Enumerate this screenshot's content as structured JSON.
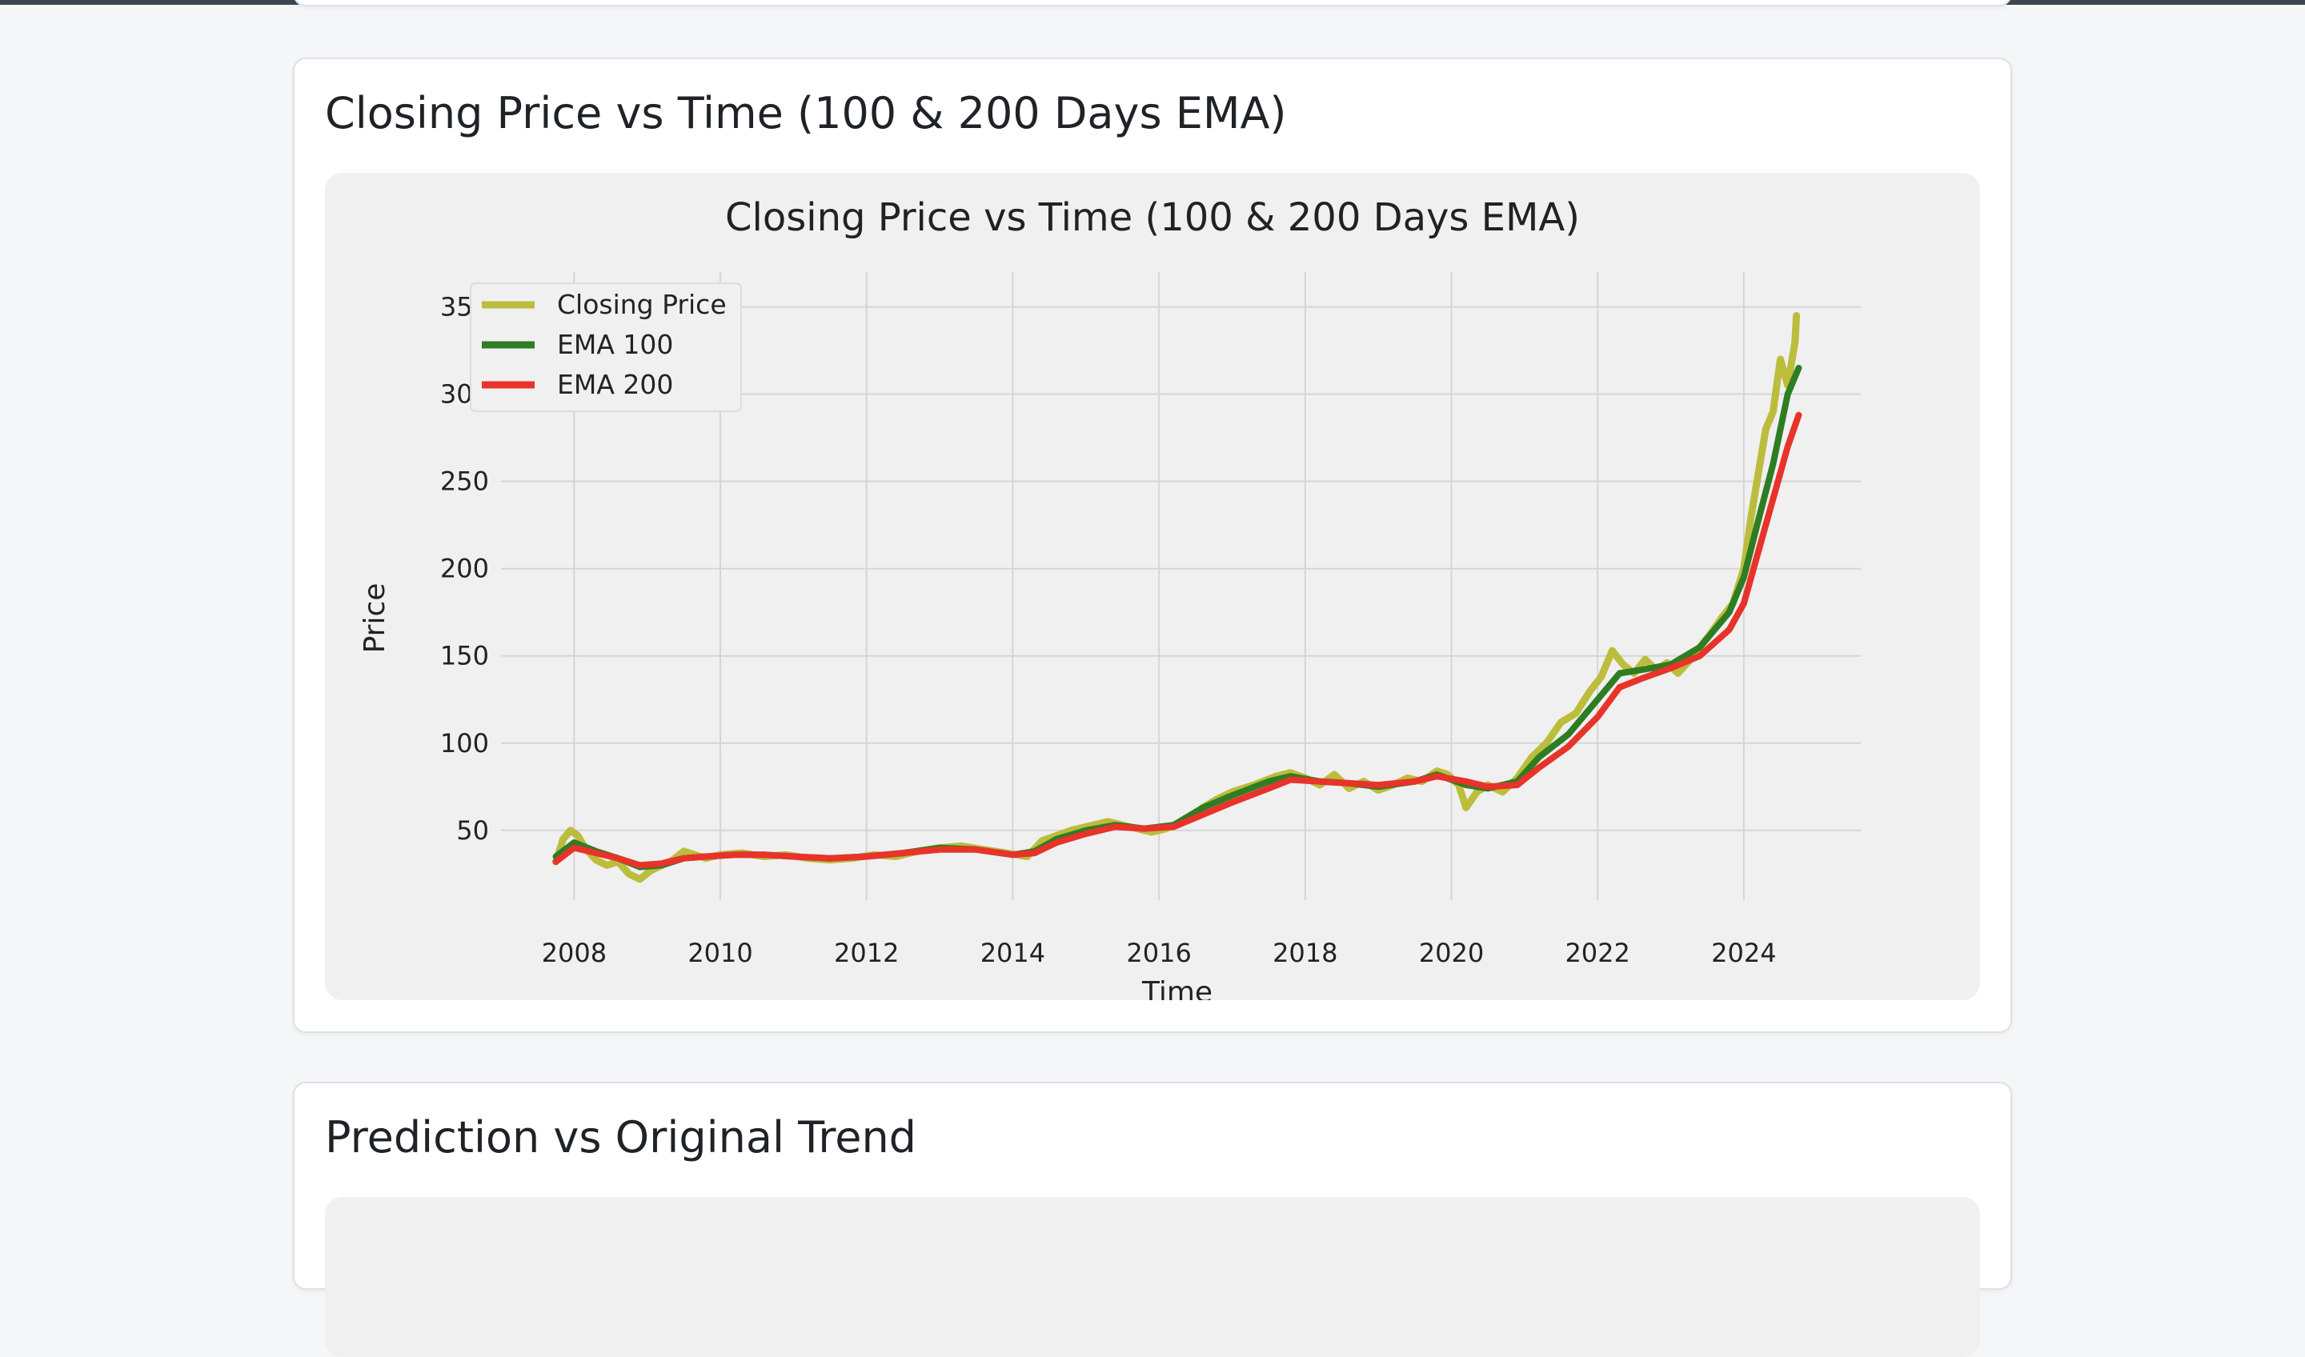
{
  "colors": {
    "page_bg": "#f4f6f8",
    "card_bg": "#ffffff",
    "plot_bg": "#f0f0f0",
    "grid": "#d5d5d5",
    "closing": "#bcbd3c",
    "ema100": "#2e7d24",
    "ema200": "#e8332a"
  },
  "sections": {
    "ema_chart": {
      "title": "Closing Price vs Time (100 & 200 Days EMA)"
    },
    "prediction_chart": {
      "title": "Prediction vs Original Trend"
    }
  },
  "chart_data": {
    "type": "line",
    "title": "Closing Price vs Time (100 & 200 Days EMA)",
    "xlabel": "Time",
    "ylabel": "Price",
    "xlim": [
      2007.0,
      2025.6
    ],
    "ylim": [
      10,
      370
    ],
    "x_ticks": [
      "2008",
      "2010",
      "2012",
      "2014",
      "2016",
      "2018",
      "2020",
      "2022",
      "2024"
    ],
    "y_ticks": [
      "50",
      "100",
      "150",
      "200",
      "250",
      "300",
      "350"
    ],
    "grid": true,
    "legend_position": "upper-left",
    "series": [
      {
        "name": "Closing Price",
        "color": "#bcbd3c",
        "points": [
          [
            2007.75,
            32
          ],
          [
            2007.85,
            45
          ],
          [
            2007.95,
            50
          ],
          [
            2008.05,
            47
          ],
          [
            2008.15,
            40
          ],
          [
            2008.3,
            33
          ],
          [
            2008.45,
            30
          ],
          [
            2008.6,
            32
          ],
          [
            2008.75,
            25
          ],
          [
            2008.9,
            22
          ],
          [
            2009.05,
            27
          ],
          [
            2009.2,
            30
          ],
          [
            2009.35,
            33
          ],
          [
            2009.5,
            38
          ],
          [
            2009.65,
            36
          ],
          [
            2009.8,
            34
          ],
          [
            2010.0,
            36
          ],
          [
            2010.3,
            37
          ],
          [
            2010.6,
            35
          ],
          [
            2010.9,
            36
          ],
          [
            2011.2,
            34
          ],
          [
            2011.5,
            33
          ],
          [
            2011.8,
            34
          ],
          [
            2012.1,
            36
          ],
          [
            2012.4,
            35
          ],
          [
            2012.7,
            38
          ],
          [
            2013.0,
            40
          ],
          [
            2013.3,
            41
          ],
          [
            2013.6,
            39
          ],
          [
            2013.9,
            37
          ],
          [
            2014.2,
            35
          ],
          [
            2014.4,
            44
          ],
          [
            2014.6,
            47
          ],
          [
            2014.8,
            50
          ],
          [
            2015.0,
            52
          ],
          [
            2015.3,
            55
          ],
          [
            2015.6,
            52
          ],
          [
            2015.9,
            49
          ],
          [
            2016.1,
            51
          ],
          [
            2016.4,
            56
          ],
          [
            2016.6,
            63
          ],
          [
            2016.8,
            68
          ],
          [
            2017.0,
            72
          ],
          [
            2017.3,
            76
          ],
          [
            2017.6,
            81
          ],
          [
            2017.8,
            83
          ],
          [
            2018.0,
            80
          ],
          [
            2018.2,
            76
          ],
          [
            2018.4,
            82
          ],
          [
            2018.6,
            74
          ],
          [
            2018.8,
            78
          ],
          [
            2019.0,
            73
          ],
          [
            2019.2,
            76
          ],
          [
            2019.4,
            80
          ],
          [
            2019.6,
            78
          ],
          [
            2019.8,
            84
          ],
          [
            2019.95,
            82
          ],
          [
            2020.1,
            76
          ],
          [
            2020.2,
            63
          ],
          [
            2020.35,
            72
          ],
          [
            2020.5,
            76
          ],
          [
            2020.7,
            72
          ],
          [
            2020.9,
            80
          ],
          [
            2021.1,
            92
          ],
          [
            2021.3,
            100
          ],
          [
            2021.5,
            112
          ],
          [
            2021.7,
            117
          ],
          [
            2021.9,
            130
          ],
          [
            2022.05,
            138
          ],
          [
            2022.2,
            153
          ],
          [
            2022.35,
            145
          ],
          [
            2022.5,
            140
          ],
          [
            2022.65,
            148
          ],
          [
            2022.8,
            142
          ],
          [
            2022.95,
            146
          ],
          [
            2023.1,
            140
          ],
          [
            2023.25,
            147
          ],
          [
            2023.4,
            155
          ],
          [
            2023.55,
            163
          ],
          [
            2023.7,
            172
          ],
          [
            2023.85,
            180
          ],
          [
            2024.0,
            200
          ],
          [
            2024.1,
            230
          ],
          [
            2024.2,
            255
          ],
          [
            2024.3,
            280
          ],
          [
            2024.4,
            290
          ],
          [
            2024.5,
            320
          ],
          [
            2024.6,
            305
          ],
          [
            2024.7,
            330
          ],
          [
            2024.72,
            345
          ]
        ]
      },
      {
        "name": "EMA 100",
        "color": "#2e7d24",
        "points": [
          [
            2007.75,
            35
          ],
          [
            2008.0,
            43
          ],
          [
            2008.3,
            38
          ],
          [
            2008.6,
            34
          ],
          [
            2008.9,
            29
          ],
          [
            2009.2,
            30
          ],
          [
            2009.5,
            34
          ],
          [
            2009.8,
            35
          ],
          [
            2010.2,
            36
          ],
          [
            2010.6,
            36
          ],
          [
            2011.0,
            35
          ],
          [
            2011.5,
            34
          ],
          [
            2012.0,
            35
          ],
          [
            2012.5,
            37
          ],
          [
            2013.0,
            40
          ],
          [
            2013.5,
            39
          ],
          [
            2014.0,
            36
          ],
          [
            2014.3,
            38
          ],
          [
            2014.6,
            45
          ],
          [
            2015.0,
            50
          ],
          [
            2015.4,
            53
          ],
          [
            2015.8,
            51
          ],
          [
            2016.2,
            53
          ],
          [
            2016.6,
            63
          ],
          [
            2017.0,
            70
          ],
          [
            2017.5,
            78
          ],
          [
            2017.8,
            81
          ],
          [
            2018.2,
            78
          ],
          [
            2018.6,
            77
          ],
          [
            2019.0,
            75
          ],
          [
            2019.5,
            78
          ],
          [
            2019.8,
            82
          ],
          [
            2020.2,
            76
          ],
          [
            2020.5,
            74
          ],
          [
            2020.9,
            78
          ],
          [
            2021.2,
            92
          ],
          [
            2021.6,
            105
          ],
          [
            2022.0,
            125
          ],
          [
            2022.3,
            140
          ],
          [
            2022.6,
            142
          ],
          [
            2023.0,
            145
          ],
          [
            2023.4,
            155
          ],
          [
            2023.8,
            175
          ],
          [
            2024.0,
            195
          ],
          [
            2024.2,
            228
          ],
          [
            2024.4,
            260
          ],
          [
            2024.6,
            300
          ],
          [
            2024.75,
            315
          ]
        ]
      },
      {
        "name": "EMA 200",
        "color": "#e8332a",
        "points": [
          [
            2007.75,
            32
          ],
          [
            2008.0,
            40
          ],
          [
            2008.3,
            37
          ],
          [
            2008.6,
            34
          ],
          [
            2008.9,
            30
          ],
          [
            2009.2,
            31
          ],
          [
            2009.5,
            34
          ],
          [
            2009.8,
            35
          ],
          [
            2010.2,
            36
          ],
          [
            2010.6,
            36
          ],
          [
            2011.0,
            35
          ],
          [
            2011.5,
            34
          ],
          [
            2012.0,
            35
          ],
          [
            2012.5,
            37
          ],
          [
            2013.0,
            39
          ],
          [
            2013.5,
            39
          ],
          [
            2014.0,
            36
          ],
          [
            2014.3,
            37
          ],
          [
            2014.6,
            43
          ],
          [
            2015.0,
            48
          ],
          [
            2015.4,
            52
          ],
          [
            2015.8,
            51
          ],
          [
            2016.2,
            52
          ],
          [
            2016.6,
            59
          ],
          [
            2017.0,
            66
          ],
          [
            2017.5,
            74
          ],
          [
            2017.8,
            79
          ],
          [
            2018.2,
            78
          ],
          [
            2018.6,
            77
          ],
          [
            2019.0,
            76
          ],
          [
            2019.5,
            78
          ],
          [
            2019.8,
            81
          ],
          [
            2020.2,
            78
          ],
          [
            2020.5,
            75
          ],
          [
            2020.9,
            76
          ],
          [
            2021.2,
            86
          ],
          [
            2021.6,
            98
          ],
          [
            2022.0,
            115
          ],
          [
            2022.3,
            132
          ],
          [
            2022.6,
            137
          ],
          [
            2023.0,
            143
          ],
          [
            2023.4,
            150
          ],
          [
            2023.8,
            165
          ],
          [
            2024.0,
            180
          ],
          [
            2024.2,
            210
          ],
          [
            2024.4,
            240
          ],
          [
            2024.6,
            270
          ],
          [
            2024.75,
            288
          ]
        ]
      }
    ]
  }
}
